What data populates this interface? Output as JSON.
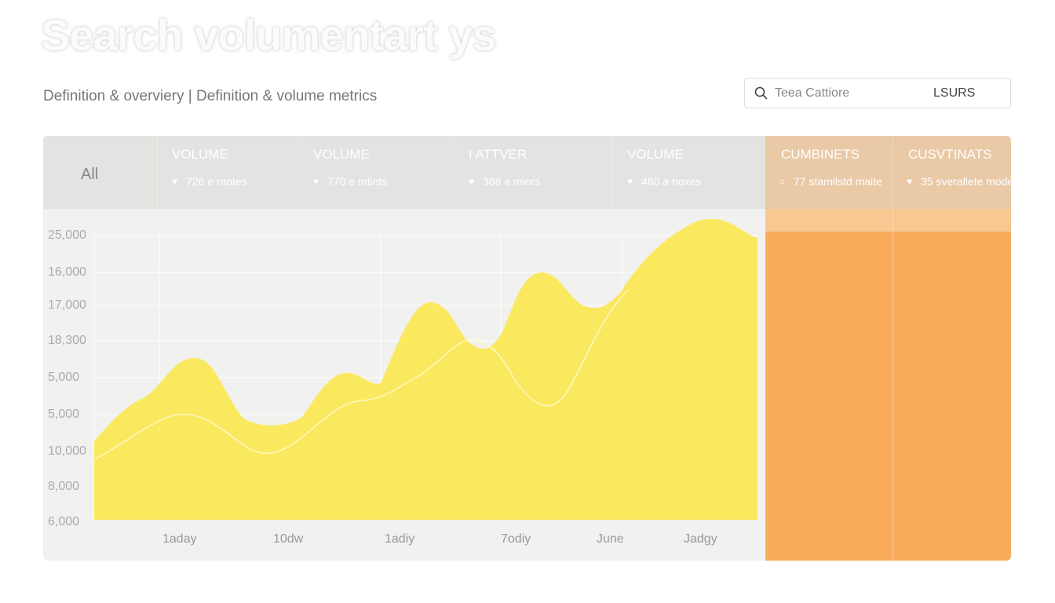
{
  "header": {
    "title": "Search volumentart ys",
    "subtitle": "Definition & overviery | Definition & volume metrics"
  },
  "search": {
    "placeholder": "Teea Cattiore",
    "button": "LSURS"
  },
  "table": {
    "first": "All",
    "columns": [
      {
        "title": "VOLUME",
        "detail": "726 e rootes"
      },
      {
        "title": "VOLUME",
        "detail": "770 e mtints"
      },
      {
        "title": "I ATTVER",
        "detail": "388 a miors"
      },
      {
        "title": "VOLUME",
        "detail": "460 a noxes"
      },
      {
        "title": "CUMBINETS",
        "detail": "77 stamilstd maite"
      },
      {
        "title": "CUSVTINATS",
        "detail": "35 sverallete mode"
      }
    ]
  },
  "chart": {
    "y_labels": [
      "25,000",
      "16,000",
      "17,000",
      "18,300",
      "5,000",
      "5,000",
      "10,000",
      "8,000",
      "6,000"
    ],
    "x_labels": [
      "1aday",
      "10dw",
      "1adiy",
      "7odiy",
      "June",
      "Jadgy"
    ]
  }
}
